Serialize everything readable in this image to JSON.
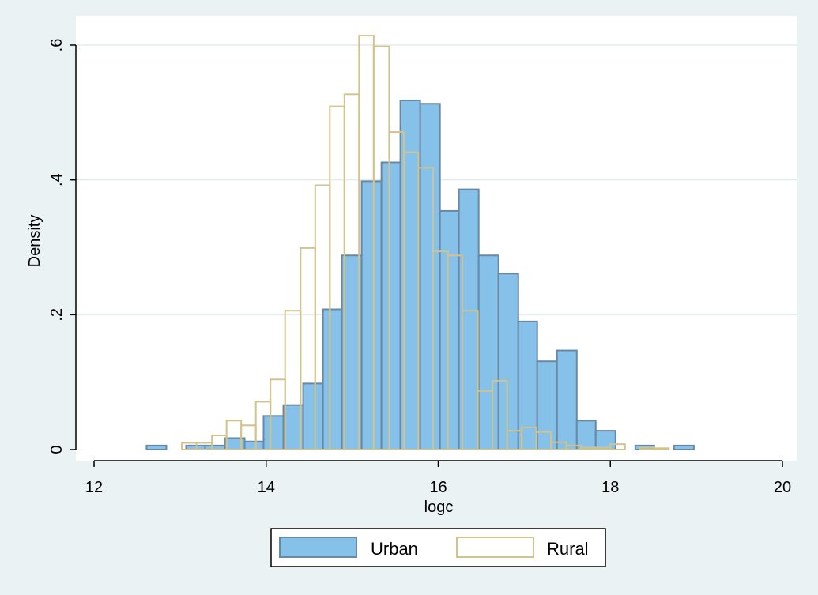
{
  "chart_data": {
    "type": "bar",
    "subtype": "overlaid-histogram",
    "title": "",
    "xlabel": "logc",
    "ylabel": "Density",
    "xlim": [
      12,
      20
    ],
    "ylim": [
      0,
      0.6
    ],
    "x_ticks": [
      12,
      14,
      16,
      18,
      20
    ],
    "x_tick_labels": [
      "12",
      "14",
      "16",
      "18",
      "20"
    ],
    "y_ticks": [
      0,
      0.2,
      0.4,
      0.6
    ],
    "y_tick_labels": [
      "0",
      ".2",
      ".4",
      ".6"
    ],
    "grid": "horizontal",
    "legend": {
      "position": "bottom",
      "entries": [
        "Urban",
        "Rural"
      ]
    },
    "series": [
      {
        "name": "Urban",
        "style": "filled",
        "fill": "#85c1e9",
        "stroke": "#6a87a5",
        "bins": [
          {
            "x0": 12.61,
            "x1": 12.84,
            "y": 0.006
          },
          {
            "x0": 13.07,
            "x1": 13.29,
            "y": 0.006
          },
          {
            "x0": 13.29,
            "x1": 13.52,
            "y": 0.006
          },
          {
            "x0": 13.52,
            "x1": 13.75,
            "y": 0.017
          },
          {
            "x0": 13.75,
            "x1": 13.97,
            "y": 0.012
          },
          {
            "x0": 13.97,
            "x1": 14.2,
            "y": 0.05
          },
          {
            "x0": 14.2,
            "x1": 14.43,
            "y": 0.066
          },
          {
            "x0": 14.43,
            "x1": 14.66,
            "y": 0.098
          },
          {
            "x0": 14.66,
            "x1": 14.88,
            "y": 0.208
          },
          {
            "x0": 14.88,
            "x1": 15.11,
            "y": 0.288
          },
          {
            "x0": 15.11,
            "x1": 15.34,
            "y": 0.398
          },
          {
            "x0": 15.34,
            "x1": 15.56,
            "y": 0.426
          },
          {
            "x0": 15.56,
            "x1": 15.79,
            "y": 0.518
          },
          {
            "x0": 15.79,
            "x1": 16.02,
            "y": 0.513
          },
          {
            "x0": 16.02,
            "x1": 16.24,
            "y": 0.354
          },
          {
            "x0": 16.24,
            "x1": 16.47,
            "y": 0.386
          },
          {
            "x0": 16.47,
            "x1": 16.7,
            "y": 0.288
          },
          {
            "x0": 16.7,
            "x1": 16.93,
            "y": 0.261
          },
          {
            "x0": 16.93,
            "x1": 17.15,
            "y": 0.19
          },
          {
            "x0": 17.15,
            "x1": 17.38,
            "y": 0.131
          },
          {
            "x0": 17.38,
            "x1": 17.61,
            "y": 0.147
          },
          {
            "x0": 17.61,
            "x1": 17.83,
            "y": 0.043
          },
          {
            "x0": 17.83,
            "x1": 18.06,
            "y": 0.028
          },
          {
            "x0": 18.29,
            "x1": 18.51,
            "y": 0.006
          },
          {
            "x0": 18.74,
            "x1": 18.97,
            "y": 0.006
          }
        ]
      },
      {
        "name": "Rural",
        "style": "outline",
        "fill": "#ffffff",
        "stroke": "#d2c28c",
        "bins": [
          {
            "x0": 13.02,
            "x1": 13.19,
            "y": 0.01
          },
          {
            "x0": 13.19,
            "x1": 13.37,
            "y": 0.01
          },
          {
            "x0": 13.37,
            "x1": 13.54,
            "y": 0.021
          },
          {
            "x0": 13.54,
            "x1": 13.71,
            "y": 0.043
          },
          {
            "x0": 13.71,
            "x1": 13.88,
            "y": 0.036
          },
          {
            "x0": 13.88,
            "x1": 14.05,
            "y": 0.071
          },
          {
            "x0": 14.05,
            "x1": 14.22,
            "y": 0.104
          },
          {
            "x0": 14.22,
            "x1": 14.4,
            "y": 0.206
          },
          {
            "x0": 14.4,
            "x1": 14.57,
            "y": 0.299
          },
          {
            "x0": 14.57,
            "x1": 14.74,
            "y": 0.392
          },
          {
            "x0": 14.74,
            "x1": 14.91,
            "y": 0.509
          },
          {
            "x0": 14.91,
            "x1": 15.08,
            "y": 0.527
          },
          {
            "x0": 15.08,
            "x1": 15.25,
            "y": 0.614
          },
          {
            "x0": 15.25,
            "x1": 15.43,
            "y": 0.598
          },
          {
            "x0": 15.43,
            "x1": 15.6,
            "y": 0.471
          },
          {
            "x0": 15.6,
            "x1": 15.77,
            "y": 0.441
          },
          {
            "x0": 15.77,
            "x1": 15.94,
            "y": 0.418
          },
          {
            "x0": 15.94,
            "x1": 16.11,
            "y": 0.294
          },
          {
            "x0": 16.11,
            "x1": 16.28,
            "y": 0.288
          },
          {
            "x0": 16.28,
            "x1": 16.46,
            "y": 0.206
          },
          {
            "x0": 16.46,
            "x1": 16.63,
            "y": 0.087
          },
          {
            "x0": 16.63,
            "x1": 16.8,
            "y": 0.102
          },
          {
            "x0": 16.8,
            "x1": 16.97,
            "y": 0.028
          },
          {
            "x0": 16.97,
            "x1": 17.14,
            "y": 0.033
          },
          {
            "x0": 17.14,
            "x1": 17.31,
            "y": 0.026
          },
          {
            "x0": 17.31,
            "x1": 17.49,
            "y": 0.011
          },
          {
            "x0": 17.49,
            "x1": 17.66,
            "y": 0.006
          },
          {
            "x0": 17.66,
            "x1": 17.83,
            "y": 0.003
          },
          {
            "x0": 17.83,
            "x1": 18.0,
            "y": 0.003
          },
          {
            "x0": 18.0,
            "x1": 18.17,
            "y": 0.008
          },
          {
            "x0": 18.34,
            "x1": 18.51,
            "y": 0.003
          },
          {
            "x0": 18.51,
            "x1": 18.68,
            "y": 0.002
          }
        ]
      }
    ]
  }
}
